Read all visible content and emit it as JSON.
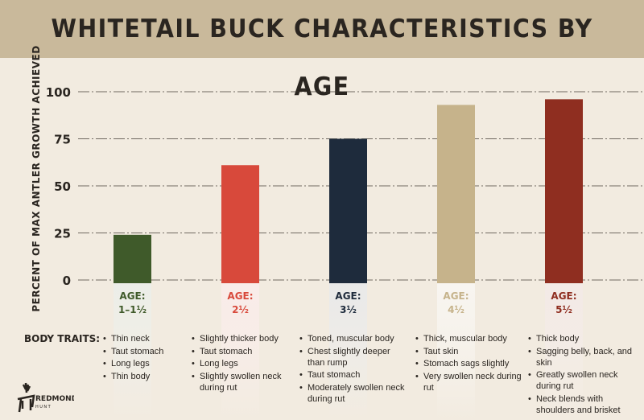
{
  "chart_data": {
    "type": "bar",
    "title": "WHITETAIL BUCK CHARACTERISTICS BY AGE",
    "ylabel": "PERCENT OF MAX ANTLER GROWTH ACHIEVED",
    "xlabel": "",
    "ylim": [
      0,
      100
    ],
    "yticks": [
      "0",
      "25",
      "50",
      "75",
      "100"
    ],
    "grid": true,
    "categories": [
      "AGE: 1–1½",
      "AGE: 2½",
      "AGE: 3½",
      "AGE: 4½",
      "AGE: 5½"
    ],
    "age_lines": [
      [
        "AGE:",
        "1–1½"
      ],
      [
        "AGE:",
        "2½"
      ],
      [
        "AGE:",
        "3½"
      ],
      [
        "AGE:",
        "4½"
      ],
      [
        "AGE:",
        "5½"
      ]
    ],
    "values": [
      24,
      61,
      75,
      93,
      96
    ],
    "colors": [
      "#3f5a2a",
      "#d8493b",
      "#1e2b3c",
      "#c6b38b",
      "#8f2e20"
    ]
  },
  "body_traits": {
    "label": "BODY TRAITS:",
    "columns": [
      [
        "Thin neck",
        "Taut stomach",
        "Long legs",
        "Thin body"
      ],
      [
        "Slightly thicker body",
        "Taut stomach",
        "Long legs",
        "Slightly swollen neck during rut"
      ],
      [
        "Toned, muscular body",
        "Chest slightly deeper than rump",
        "Taut stomach",
        "Moderately swollen neck during rut"
      ],
      [
        "Thick, muscular body",
        "Taut skin",
        "Stomach sags slightly",
        "Very swollen neck during rut"
      ],
      [
        "Thick body",
        "Sagging belly, back, and skin",
        "Greatly swollen neck during rut",
        "Neck blends with shoulders and brisket"
      ]
    ]
  },
  "logo": {
    "text": "REDMOND HUNT"
  }
}
